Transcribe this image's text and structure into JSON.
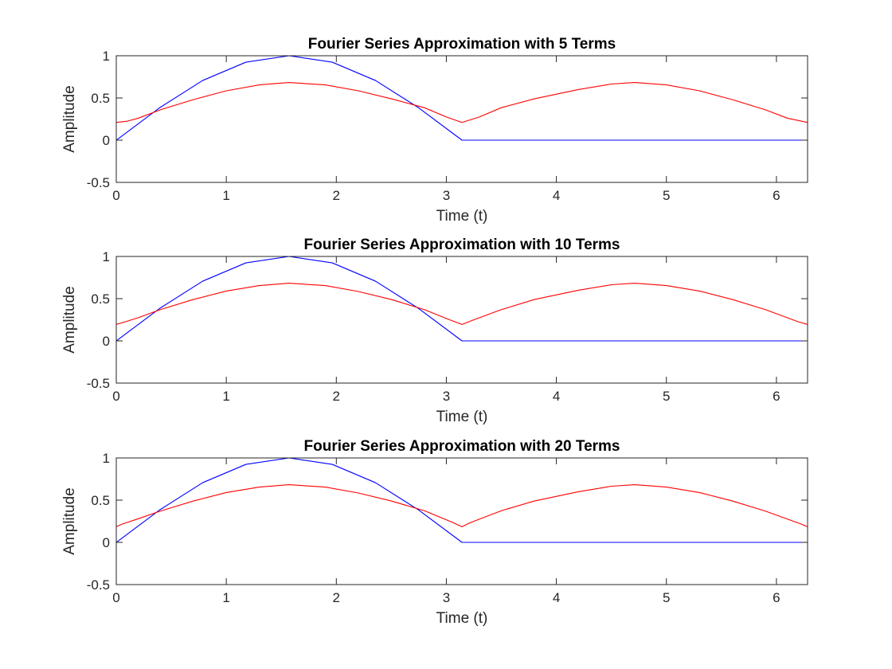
{
  "chart_data": [
    {
      "type": "line",
      "title": "Fourier Series Approximation with 5 Terms",
      "xlabel": "Time (t)",
      "ylabel": "Amplitude",
      "xlim": [
        0,
        6.2832
      ],
      "ylim": [
        -0.5,
        1
      ],
      "xticks": [
        "0",
        "1",
        "2",
        "3",
        "4",
        "5",
        "6"
      ],
      "yticks": [
        "-0.5",
        "0",
        "0.5",
        "1"
      ],
      "grid": false,
      "series": [
        {
          "color": "#0000ff",
          "x": [
            0,
            0.393,
            0.785,
            1.178,
            1.571,
            1.963,
            2.356,
            2.749,
            3.142,
            3.5,
            4.0,
            4.5,
            5.0,
            5.5,
            6.0,
            6.283
          ],
          "y": [
            0,
            0.383,
            0.707,
            0.924,
            1.0,
            0.924,
            0.707,
            0.383,
            0,
            0,
            0,
            0,
            0,
            0,
            0,
            0
          ]
        },
        {
          "color": "#ff0000",
          "x": [
            0,
            0.1,
            0.2,
            0.4,
            0.7,
            1.0,
            1.3,
            1.571,
            1.9,
            2.2,
            2.5,
            2.8,
            3.0,
            3.142,
            3.3,
            3.5,
            3.8,
            4.2,
            4.5,
            4.712,
            5.0,
            5.3,
            5.6,
            5.9,
            6.1,
            6.283
          ],
          "y": [
            0.21,
            0.225,
            0.26,
            0.36,
            0.48,
            0.585,
            0.655,
            0.683,
            0.655,
            0.585,
            0.49,
            0.385,
            0.275,
            0.21,
            0.275,
            0.385,
            0.49,
            0.6,
            0.665,
            0.683,
            0.655,
            0.585,
            0.48,
            0.36,
            0.26,
            0.21
          ]
        }
      ]
    },
    {
      "type": "line",
      "title": "Fourier Series Approximation with 10 Terms",
      "xlabel": "Time (t)",
      "ylabel": "Amplitude",
      "xlim": [
        0,
        6.2832
      ],
      "ylim": [
        -0.5,
        1
      ],
      "xticks": [
        "0",
        "1",
        "2",
        "3",
        "4",
        "5",
        "6"
      ],
      "yticks": [
        "-0.5",
        "0",
        "0.5",
        "1"
      ],
      "grid": false,
      "series": [
        {
          "color": "#0000ff",
          "x": [
            0,
            0.393,
            0.785,
            1.178,
            1.571,
            1.963,
            2.356,
            2.749,
            3.142,
            3.5,
            4.0,
            4.5,
            5.0,
            5.5,
            6.0,
            6.283
          ],
          "y": [
            0,
            0.383,
            0.707,
            0.924,
            1.0,
            0.924,
            0.707,
            0.383,
            0,
            0,
            0,
            0,
            0,
            0,
            0,
            0
          ]
        },
        {
          "color": "#ff0000",
          "x": [
            0,
            0.08,
            0.2,
            0.4,
            0.7,
            1.0,
            1.3,
            1.571,
            1.9,
            2.2,
            2.5,
            2.8,
            3.02,
            3.142,
            3.26,
            3.5,
            3.8,
            4.2,
            4.5,
            4.712,
            5.0,
            5.3,
            5.6,
            5.9,
            6.2,
            6.283
          ],
          "y": [
            0.195,
            0.225,
            0.275,
            0.37,
            0.49,
            0.59,
            0.655,
            0.683,
            0.655,
            0.585,
            0.49,
            0.37,
            0.255,
            0.195,
            0.255,
            0.37,
            0.49,
            0.6,
            0.665,
            0.683,
            0.655,
            0.59,
            0.49,
            0.37,
            0.225,
            0.195
          ]
        }
      ]
    },
    {
      "type": "line",
      "title": "Fourier Series Approximation with 20 Terms",
      "xlabel": "Time (t)",
      "ylabel": "Amplitude",
      "xlim": [
        0,
        6.2832
      ],
      "ylim": [
        -0.5,
        1
      ],
      "xticks": [
        "0",
        "1",
        "2",
        "3",
        "4",
        "5",
        "6"
      ],
      "yticks": [
        "-0.5",
        "0",
        "0.5",
        "1"
      ],
      "grid": false,
      "series": [
        {
          "color": "#0000ff",
          "x": [
            0,
            0.393,
            0.785,
            1.178,
            1.571,
            1.963,
            2.356,
            2.749,
            3.142,
            3.5,
            4.0,
            4.5,
            5.0,
            5.5,
            6.0,
            6.283
          ],
          "y": [
            0,
            0.383,
            0.707,
            0.924,
            1.0,
            0.924,
            0.707,
            0.383,
            0,
            0,
            0,
            0,
            0,
            0,
            0,
            0
          ]
        },
        {
          "color": "#ff0000",
          "x": [
            0,
            0.05,
            0.2,
            0.4,
            0.7,
            1.0,
            1.3,
            1.571,
            1.9,
            2.2,
            2.5,
            2.8,
            3.06,
            3.142,
            3.22,
            3.5,
            3.8,
            4.2,
            4.5,
            4.712,
            5.0,
            5.3,
            5.6,
            5.9,
            6.23,
            6.283
          ],
          "y": [
            0.185,
            0.215,
            0.28,
            0.37,
            0.49,
            0.59,
            0.655,
            0.683,
            0.655,
            0.585,
            0.49,
            0.375,
            0.235,
            0.185,
            0.235,
            0.375,
            0.49,
            0.6,
            0.665,
            0.683,
            0.655,
            0.59,
            0.49,
            0.37,
            0.215,
            0.185
          ]
        }
      ]
    }
  ]
}
